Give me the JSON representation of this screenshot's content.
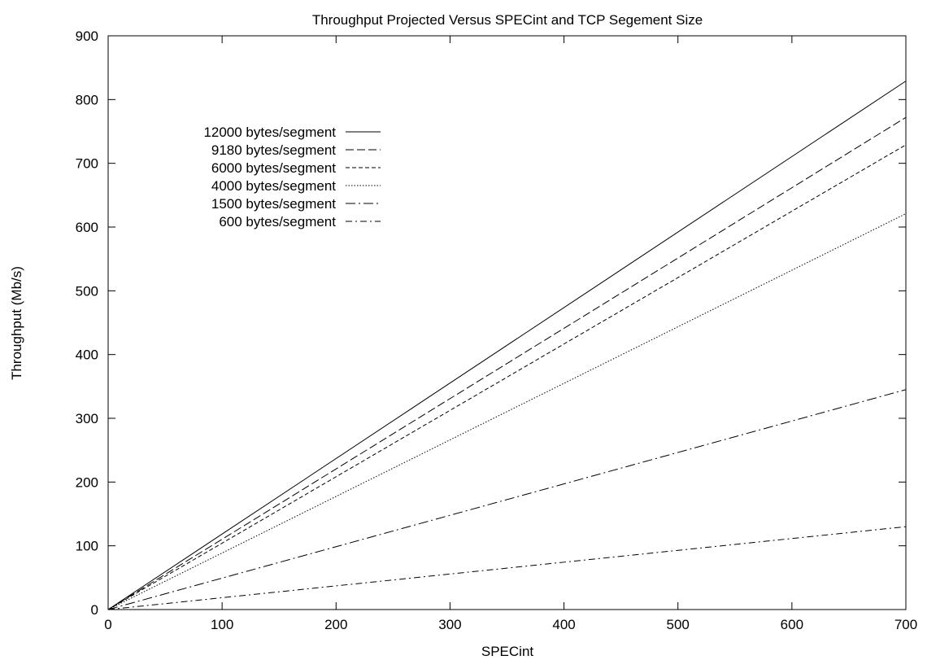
{
  "chart_data": {
    "type": "line",
    "title": "Throughput Projected Versus SPECint and TCP Segement Size",
    "xlabel": "SPECint",
    "ylabel": "Throughput (Mb/s)",
    "xlim": [
      0,
      700
    ],
    "ylim": [
      0,
      900
    ],
    "xticks": [
      0,
      100,
      200,
      300,
      400,
      500,
      600,
      700
    ],
    "yticks": [
      0,
      100,
      200,
      300,
      400,
      500,
      600,
      700,
      800,
      900
    ],
    "grid": false,
    "legend_position": "top-left",
    "line_color": "#000000",
    "series": [
      {
        "name": "12000 bytes/segment",
        "dash": "solid",
        "x": [
          0,
          700
        ],
        "y": [
          0,
          829
        ]
      },
      {
        "name": "9180 bytes/segment",
        "dash": "dashed",
        "x": [
          0,
          700
        ],
        "y": [
          0,
          772
        ]
      },
      {
        "name": "6000 bytes/segment",
        "dash": "short-dashed",
        "x": [
          0,
          700
        ],
        "y": [
          0,
          729
        ]
      },
      {
        "name": "4000 bytes/segment",
        "dash": "dotted",
        "x": [
          0,
          700
        ],
        "y": [
          0,
          621
        ]
      },
      {
        "name": "1500 bytes/segment",
        "dash": "dash-dot",
        "x": [
          0,
          700
        ],
        "y": [
          0,
          345
        ]
      },
      {
        "name": "600 bytes/segment",
        "dash": "dash-dot-short",
        "x": [
          0,
          700
        ],
        "y": [
          0,
          130
        ]
      }
    ]
  }
}
